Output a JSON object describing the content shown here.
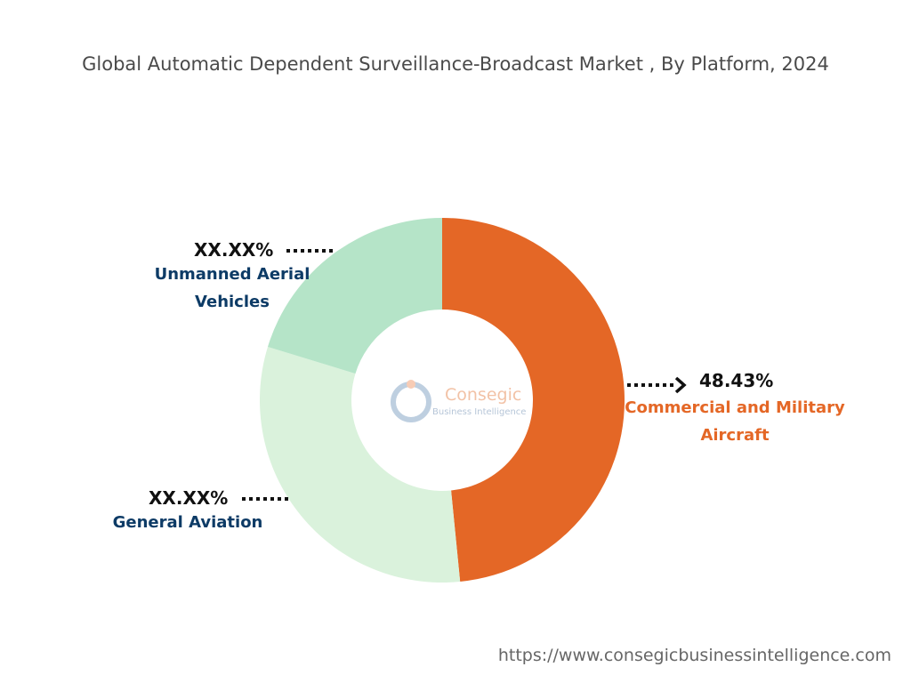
{
  "chart_data": {
    "type": "donut",
    "title": "Global Automatic Dependent Surveillance-Broadcast Market , By Platform, 2024",
    "categories": [
      "Commercial and Military Aircraft",
      "General Aviation",
      "Unmanned Aerial Vehicles"
    ],
    "values": [
      48.43,
      31.3,
      20.27
    ],
    "value_labels": [
      "48.43%",
      "XX.XX%",
      "XX.XX%"
    ],
    "colors": [
      "#e46726",
      "#daf2dc",
      "#b5e4c8"
    ],
    "label_colors": [
      "#e46726",
      "#0d3b66",
      "#0d3b66"
    ]
  },
  "watermark": {
    "name": "Consegic",
    "tagline": "Business Intelligence"
  },
  "source": "https://www.consegicbusinessintelligence.com"
}
